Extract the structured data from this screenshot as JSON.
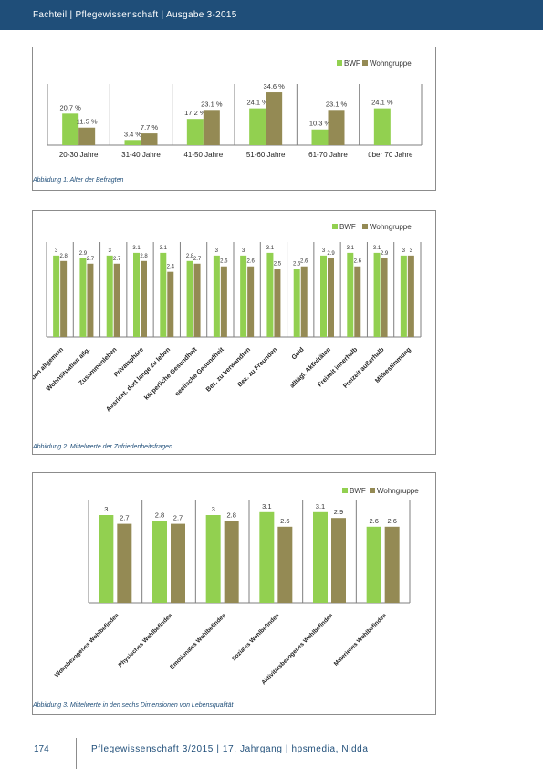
{
  "header": {
    "text": "Fachteil | Pflegewissenschaft | Ausgabe 3-2015"
  },
  "colors": {
    "bwf": "#92d050",
    "wohngruppe": "#948a54",
    "header": "#1f4e79"
  },
  "captions": {
    "c1": "Abbildung 1: Alter der Befragten",
    "c2": "Abbildung 2: Mittelwerte der Zufriedenheitsfragen",
    "c3": "Abbildung 3: Mittelwerte in den sechs Dimensionen von Lebensqualität"
  },
  "footer": {
    "page": "174",
    "text": "Pflegewissenschaft 3/2015 | 17. Jahrgang | hpsmedia, Nidda"
  },
  "chart_data": [
    {
      "type": "bar",
      "title": "",
      "legend_position": "top-right",
      "categories": [
        "20-30 Jahre",
        "31-40 Jahre",
        "41-50 Jahre",
        "51-60 Jahre",
        "61-70 Jahre",
        "über 70 Jahre"
      ],
      "series": [
        {
          "name": "BWF",
          "values": [
            20.7,
            3.4,
            17.2,
            24.1,
            10.3,
            24.1
          ],
          "labels": [
            "20.7 %",
            "3.4 %",
            "17.2 %",
            "24.1 %",
            "10.3 %",
            "24.1 %"
          ]
        },
        {
          "name": "Wohngruppe",
          "values": [
            11.5,
            7.7,
            23.1,
            34.6,
            23.1,
            null
          ],
          "labels": [
            "11.5 %",
            "7.7 %",
            "23.1 %",
            "34.6 %",
            "23.1 %",
            ""
          ]
        }
      ],
      "ylim": [
        0,
        40
      ]
    },
    {
      "type": "bar",
      "title": "",
      "legend_position": "top-right",
      "categories": [
        "Leben allgemein",
        "Wohnsituation allg.",
        "Zusammenleben",
        "Privatsphäre",
        "Ausricht. dort lange zu leben",
        "körperliche Gesundheit",
        "seelische Gesundheit",
        "Bez. zu Verwandten",
        "Bez. zu Freunden",
        "Geld",
        "alltägl. Aktivitäten",
        "Freizeit innerhalb",
        "Freizeit außerhalb",
        "Mitbestimmung"
      ],
      "series": [
        {
          "name": "BWF",
          "values": [
            3,
            2.9,
            3,
            3.1,
            3.1,
            2.8,
            3,
            3,
            3.1,
            2.5,
            3,
            3.1,
            3.1,
            3
          ],
          "labels": [
            "3",
            "2.9",
            "3",
            "3.1",
            "3.1",
            "2.8",
            "3",
            "3",
            "3.1",
            "2.5",
            "3",
            "3.1",
            "3.1",
            "3"
          ]
        },
        {
          "name": "Wohngruppe",
          "values": [
            2.8,
            2.7,
            2.7,
            2.8,
            2.4,
            2.7,
            2.6,
            2.6,
            2.5,
            2.6,
            2.9,
            2.6,
            2.9,
            3
          ],
          "labels": [
            "2.8",
            "2.7",
            "2.7",
            "2.8",
            "2.4",
            "2.7",
            "2.6",
            "2.6",
            "2.5",
            "2.6",
            "2.9",
            "2.6",
            "2.9",
            "3"
          ]
        }
      ],
      "ylim": [
        0,
        3.5
      ]
    },
    {
      "type": "bar",
      "title": "",
      "legend_position": "top-right",
      "categories": [
        "Wohnbezogenes Wohlbefinden",
        "Physisches Wohlbefinden",
        "Emotionales Wohlbefinden",
        "Soziales Wohlbefinden",
        "Aktivitätsbezogenes Wohlbefinden",
        "Materielles Wohlbefinden"
      ],
      "series": [
        {
          "name": "BWF",
          "values": [
            3,
            2.8,
            3,
            3.1,
            3.1,
            2.6
          ],
          "labels": [
            "3",
            "2.8",
            "3",
            "3.1",
            "3.1",
            "2.6"
          ]
        },
        {
          "name": "Wohngruppe",
          "values": [
            2.7,
            2.7,
            2.8,
            2.6,
            2.9,
            2.6
          ],
          "labels": [
            "2.7",
            "2.7",
            "2.8",
            "2.6",
            "2.9",
            "2.6"
          ]
        }
      ],
      "ylim": [
        0,
        3.5
      ]
    }
  ]
}
